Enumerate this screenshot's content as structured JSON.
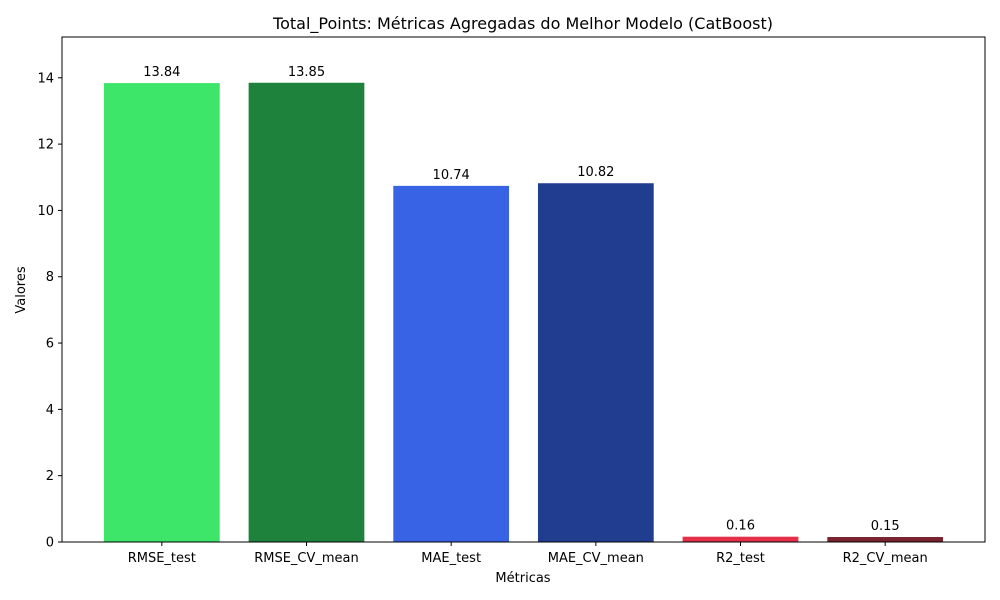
{
  "chart_data": {
    "type": "bar",
    "title": "Total_Points: Métricas Agregadas do Melhor Modelo (CatBoost)",
    "xlabel": "Métricas",
    "ylabel": "Valores",
    "categories": [
      "RMSE_test",
      "RMSE_CV_mean",
      "MAE_test",
      "MAE_CV_mean",
      "R2_test",
      "R2_CV_mean"
    ],
    "values": [
      13.84,
      13.85,
      10.74,
      10.82,
      0.16,
      0.15
    ],
    "value_labels": [
      "13.84",
      "13.85",
      "10.74",
      "10.82",
      "0.16",
      "0.15"
    ],
    "colors": [
      "#3de568",
      "#1e823c",
      "#3863e4",
      "#213d8f",
      "#e52e48",
      "#7b2230"
    ],
    "ylim": [
      0,
      15.23
    ],
    "yticks": [
      0,
      2,
      4,
      6,
      8,
      10,
      12,
      14
    ],
    "ytick_labels": [
      "0",
      "2",
      "4",
      "6",
      "8",
      "10",
      "12",
      "14"
    ],
    "grid": false,
    "legend": "none"
  }
}
